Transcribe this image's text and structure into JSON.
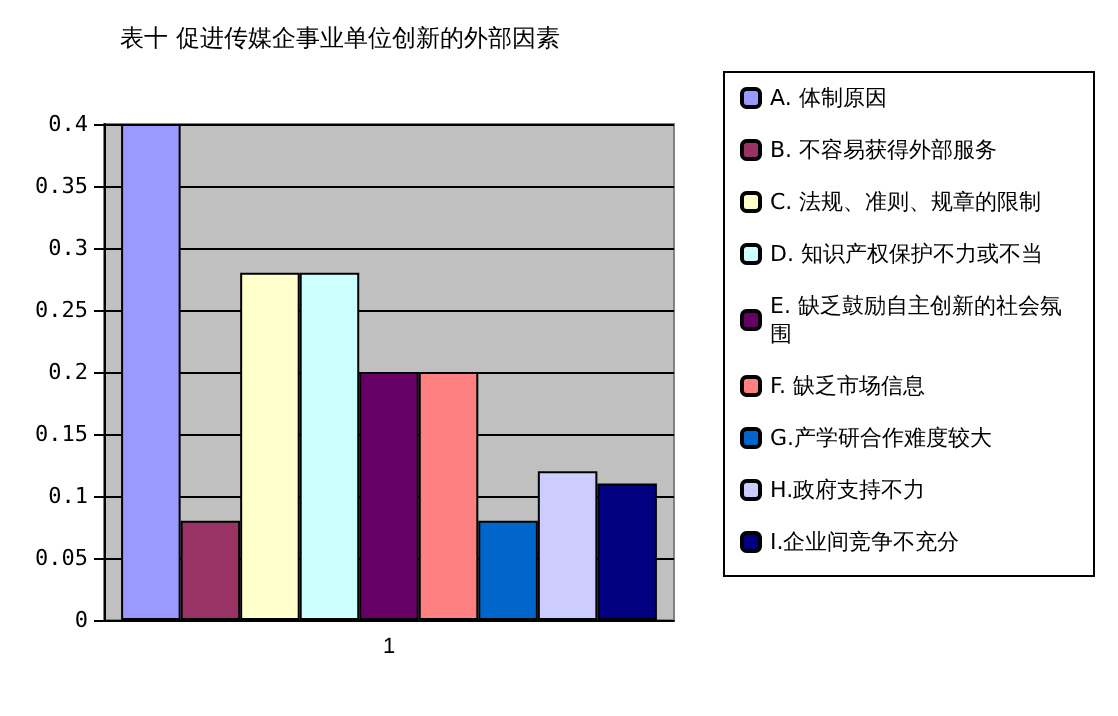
{
  "chart_data": {
    "type": "bar",
    "title": "表十 促进传媒企事业单位创新的外部因素",
    "categories": [
      "1"
    ],
    "series": [
      {
        "name": "A. 体制原因",
        "color": "#9999ff",
        "values": [
          0.4
        ]
      },
      {
        "name": "B. 不容易获得外部服务",
        "color": "#993366",
        "values": [
          0.08
        ]
      },
      {
        "name": "C. 法规、准则、规章的限制",
        "color": "#ffffcc",
        "values": [
          0.28
        ]
      },
      {
        "name": "D. 知识产权保护不力或不当",
        "color": "#ccffff",
        "values": [
          0.28
        ]
      },
      {
        "name": "E. 缺乏鼓励自主创新的社会氛围",
        "color": "#660066",
        "values": [
          0.2
        ]
      },
      {
        "name": "F. 缺乏市场信息",
        "color": "#ff8080",
        "values": [
          0.2
        ]
      },
      {
        "name": "G.产学研合作难度较大",
        "color": "#0066cc",
        "values": [
          0.08
        ]
      },
      {
        "name": "H.政府支持不力",
        "color": "#ccccff",
        "values": [
          0.12
        ]
      },
      {
        "name": "I.企业间竞争不充分",
        "color": "#000080",
        "values": [
          0.11
        ]
      }
    ],
    "ylim": [
      0,
      0.4
    ],
    "yticks": [
      0,
      0.05,
      0.1,
      0.15,
      0.2,
      0.25,
      0.3,
      0.35,
      0.4
    ],
    "grid": "y",
    "legend": "right"
  }
}
